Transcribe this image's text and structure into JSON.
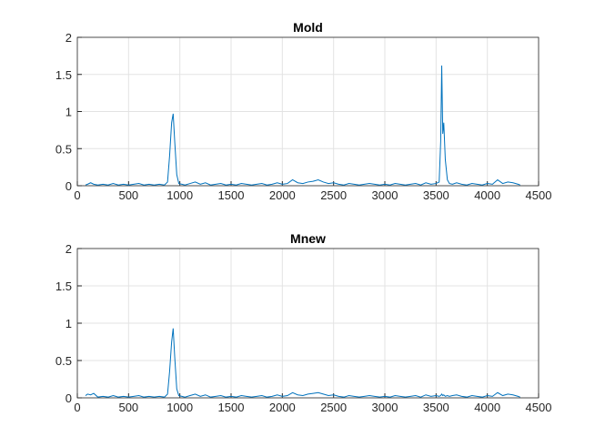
{
  "chart_data": [
    {
      "type": "line",
      "title": "Mold",
      "xlim": [
        0,
        4500
      ],
      "xticks": [
        0,
        500,
        1000,
        1500,
        2000,
        2500,
        3000,
        3500,
        4000,
        4500
      ],
      "ylim": [
        0,
        2
      ],
      "yticks": [
        0,
        0.5,
        1,
        1.5,
        2
      ],
      "grid": true,
      "x": [
        80,
        100,
        130,
        160,
        200,
        250,
        300,
        350,
        400,
        450,
        500,
        550,
        600,
        650,
        700,
        750,
        800,
        850,
        880,
        900,
        920,
        935,
        950,
        970,
        990,
        1020,
        1050,
        1100,
        1150,
        1200,
        1250,
        1300,
        1350,
        1400,
        1450,
        1500,
        1550,
        1600,
        1650,
        1700,
        1750,
        1800,
        1850,
        1900,
        1950,
        2000,
        2050,
        2100,
        2150,
        2200,
        2250,
        2300,
        2350,
        2400,
        2450,
        2500,
        2550,
        2600,
        2650,
        2700,
        2750,
        2800,
        2850,
        2900,
        2950,
        3000,
        3050,
        3100,
        3150,
        3200,
        3250,
        3300,
        3350,
        3400,
        3450,
        3500,
        3530,
        3545,
        3555,
        3565,
        3575,
        3590,
        3610,
        3630,
        3660,
        3700,
        3750,
        3800,
        3850,
        3900,
        3950,
        4000,
        4050,
        4100,
        4150,
        4200,
        4250,
        4300,
        4320
      ],
      "series": [
        {
          "color": "#0072bd",
          "values": [
            0.01,
            0.02,
            0.04,
            0.02,
            0.01,
            0.02,
            0.01,
            0.03,
            0.01,
            0.02,
            0.01,
            0.02,
            0.03,
            0.01,
            0.02,
            0.01,
            0.02,
            0.01,
            0.05,
            0.4,
            0.85,
            0.97,
            0.6,
            0.15,
            0.03,
            0.02,
            0.01,
            0.03,
            0.05,
            0.02,
            0.04,
            0.01,
            0.02,
            0.03,
            0.01,
            0.02,
            0.01,
            0.03,
            0.02,
            0.01,
            0.02,
            0.03,
            0.01,
            0.02,
            0.04,
            0.02,
            0.03,
            0.08,
            0.04,
            0.03,
            0.05,
            0.06,
            0.08,
            0.05,
            0.03,
            0.04,
            0.02,
            0.01,
            0.03,
            0.02,
            0.01,
            0.02,
            0.03,
            0.02,
            0.01,
            0.02,
            0.01,
            0.03,
            0.02,
            0.01,
            0.02,
            0.03,
            0.01,
            0.04,
            0.02,
            0.03,
            0.05,
            0.6,
            1.62,
            0.7,
            0.85,
            0.35,
            0.08,
            0.03,
            0.02,
            0.04,
            0.02,
            0.01,
            0.03,
            0.02,
            0.01,
            0.03,
            0.02,
            0.08,
            0.03,
            0.05,
            0.04,
            0.02,
            0.01
          ]
        }
      ]
    },
    {
      "type": "line",
      "title": "Mnew",
      "xlim": [
        0,
        4500
      ],
      "xticks": [
        0,
        500,
        1000,
        1500,
        2000,
        2500,
        3000,
        3500,
        4000,
        4500
      ],
      "ylim": [
        0,
        2
      ],
      "yticks": [
        0,
        0.5,
        1,
        1.5,
        2
      ],
      "grid": true,
      "x": [
        80,
        100,
        130,
        160,
        200,
        250,
        300,
        350,
        400,
        450,
        500,
        550,
        600,
        650,
        700,
        750,
        800,
        850,
        880,
        900,
        920,
        935,
        950,
        970,
        990,
        1020,
        1050,
        1100,
        1150,
        1200,
        1250,
        1300,
        1350,
        1400,
        1450,
        1500,
        1550,
        1600,
        1650,
        1700,
        1750,
        1800,
        1850,
        1900,
        1950,
        2000,
        2050,
        2100,
        2150,
        2200,
        2250,
        2300,
        2350,
        2400,
        2450,
        2500,
        2550,
        2600,
        2650,
        2700,
        2750,
        2800,
        2850,
        2900,
        2950,
        3000,
        3050,
        3100,
        3150,
        3200,
        3250,
        3300,
        3350,
        3400,
        3450,
        3500,
        3530,
        3545,
        3555,
        3565,
        3575,
        3590,
        3610,
        3630,
        3660,
        3700,
        3750,
        3800,
        3850,
        3900,
        3950,
        4000,
        4050,
        4100,
        4150,
        4200,
        4250,
        4300,
        4320
      ],
      "series": [
        {
          "color": "#0072bd",
          "values": [
            0.03,
            0.05,
            0.04,
            0.06,
            0.01,
            0.02,
            0.01,
            0.03,
            0.01,
            0.02,
            0.01,
            0.02,
            0.03,
            0.01,
            0.02,
            0.01,
            0.02,
            0.01,
            0.05,
            0.35,
            0.75,
            0.93,
            0.55,
            0.12,
            0.03,
            0.02,
            0.01,
            0.03,
            0.05,
            0.02,
            0.04,
            0.01,
            0.02,
            0.03,
            0.01,
            0.02,
            0.01,
            0.03,
            0.02,
            0.01,
            0.02,
            0.03,
            0.01,
            0.02,
            0.04,
            0.02,
            0.03,
            0.07,
            0.04,
            0.03,
            0.05,
            0.06,
            0.07,
            0.05,
            0.03,
            0.04,
            0.02,
            0.01,
            0.03,
            0.02,
            0.01,
            0.02,
            0.03,
            0.02,
            0.01,
            0.02,
            0.01,
            0.03,
            0.02,
            0.01,
            0.02,
            0.03,
            0.01,
            0.04,
            0.02,
            0.03,
            0.02,
            0.03,
            0.05,
            0.03,
            0.04,
            0.02,
            0.03,
            0.02,
            0.03,
            0.04,
            0.02,
            0.01,
            0.03,
            0.02,
            0.01,
            0.03,
            0.02,
            0.07,
            0.03,
            0.05,
            0.04,
            0.02,
            0.01
          ]
        }
      ]
    }
  ]
}
